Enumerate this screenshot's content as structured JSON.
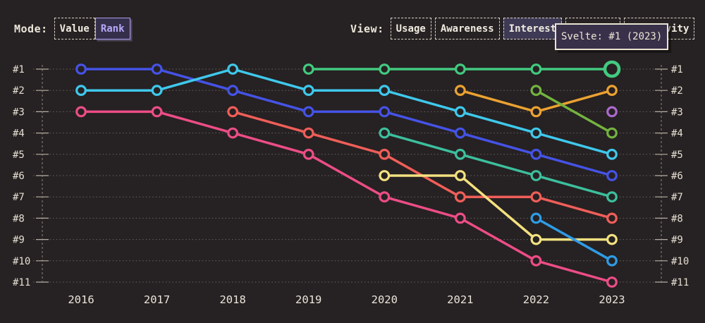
{
  "mode": {
    "label": "Mode:",
    "options": [
      {
        "label": "Value",
        "selected": false
      },
      {
        "label": "Rank",
        "selected": true
      }
    ]
  },
  "view": {
    "label": "View:",
    "options": [
      {
        "label": "Usage",
        "selected": false,
        "covered": false
      },
      {
        "label": "Awareness",
        "selected": false,
        "covered": false
      },
      {
        "label": "Interest",
        "selected": true,
        "covered": false
      },
      {
        "label": "",
        "selected": false,
        "covered": true
      },
      {
        "label": "Positivity",
        "selected": false,
        "covered": false
      }
    ]
  },
  "tooltip": {
    "text": "Svelte: #1 (2023)"
  },
  "chart_data": {
    "type": "line",
    "subtype": "bump-rank-chart",
    "title": "",
    "xlabel": "",
    "ylabel": "",
    "x": [
      "2016",
      "2017",
      "2018",
      "2019",
      "2020",
      "2021",
      "2022",
      "2023"
    ],
    "rank_labels": [
      "#1",
      "#2",
      "#3",
      "#4",
      "#5",
      "#6",
      "#7",
      "#8",
      "#9",
      "#10",
      "#11"
    ],
    "ylim": [
      1,
      11
    ],
    "grid": "dotted-horizontal",
    "legend": "none",
    "colors": {
      "background": "#262122",
      "grid": "#6b6662",
      "axis": "#8d867d",
      "tick": "#b6afa4",
      "text": "#e8e3d7"
    },
    "series": [
      {
        "name": "blue",
        "color": "#4553e6",
        "ranks": [
          1,
          1,
          2,
          3,
          3,
          4,
          5,
          6
        ]
      },
      {
        "name": "cyan",
        "color": "#3fc8ec",
        "ranks": [
          2,
          2,
          1,
          2,
          2,
          3,
          4,
          5
        ]
      },
      {
        "name": "pink",
        "color": "#ec4d86",
        "ranks": [
          3,
          3,
          4,
          5,
          7,
          8,
          10,
          11
        ]
      },
      {
        "name": "salmon",
        "color": "#f05e59",
        "ranks": [
          null,
          null,
          3,
          4,
          5,
          7,
          7,
          8
        ]
      },
      {
        "name": "svelte",
        "color": "#42ca80",
        "ranks": [
          null,
          null,
          null,
          1,
          1,
          1,
          1,
          1
        ]
      },
      {
        "name": "teal",
        "color": "#3cbf9d",
        "ranks": [
          null,
          null,
          null,
          null,
          4,
          5,
          6,
          7
        ]
      },
      {
        "name": "yellow",
        "color": "#f3e180",
        "ranks": [
          null,
          null,
          null,
          null,
          6,
          6,
          9,
          9
        ]
      },
      {
        "name": "orange",
        "color": "#eba231",
        "ranks": [
          null,
          null,
          null,
          null,
          null,
          2,
          3,
          2
        ]
      },
      {
        "name": "lime",
        "color": "#73b33f",
        "ranks": [
          null,
          null,
          null,
          null,
          null,
          null,
          2,
          4
        ]
      },
      {
        "name": "sky-blue",
        "color": "#2e9ce6",
        "ranks": [
          null,
          null,
          null,
          null,
          null,
          null,
          8,
          10
        ]
      },
      {
        "name": "purple",
        "color": "#ab69cd",
        "ranks": [
          null,
          null,
          null,
          null,
          null,
          null,
          null,
          3
        ]
      }
    ],
    "highlight": {
      "series": "svelte",
      "x": "2023",
      "rank": 1,
      "tooltip": "Svelte: #1 (2023)"
    }
  }
}
